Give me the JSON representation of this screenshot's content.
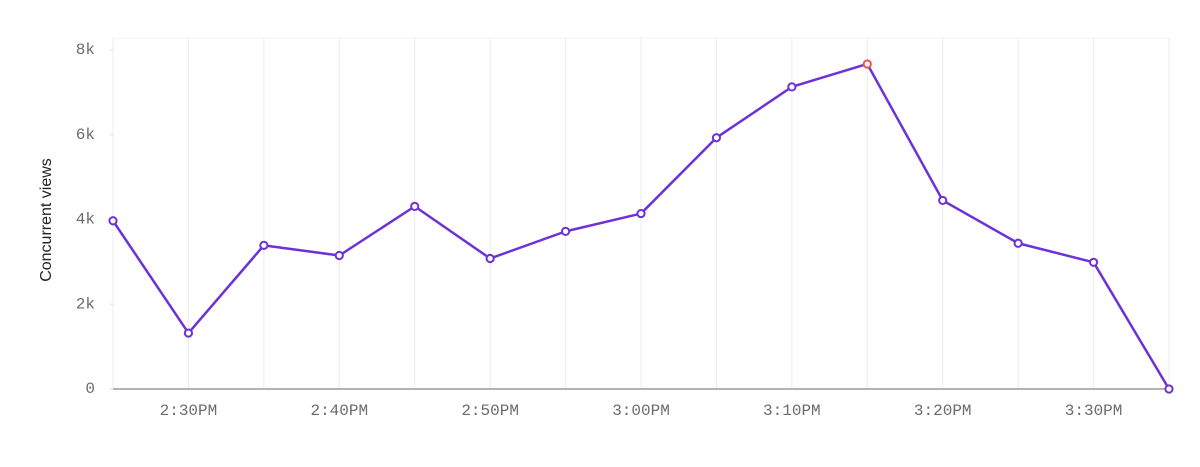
{
  "chart_data": {
    "type": "line",
    "y_label": "Concurrent views",
    "categories": [
      null,
      "2:30PM",
      null,
      "2:40PM",
      null,
      "2:50PM",
      null,
      "3:00PM",
      null,
      "3:10PM",
      null,
      "3:20PM",
      null,
      "3:30PM",
      null
    ],
    "series": [
      {
        "name": "Concurrent views",
        "color": "#6d32d6",
        "values": [
          3970,
          1320,
          3390,
          3150,
          4310,
          3080,
          3720,
          4140,
          5930,
          7130,
          7670,
          4450,
          3440,
          2990,
          0
        ]
      }
    ],
    "highlight": {
      "index": 10,
      "color": "#ef5350"
    },
    "ylim": [
      0,
      8000
    ],
    "yticks": [
      0,
      {
        "value": 2000,
        "label": "2k"
      },
      {
        "value": 4000,
        "label": "4k"
      },
      {
        "value": 6000,
        "label": "6k"
      },
      {
        "value": 8000,
        "label": "8k"
      }
    ],
    "grid": "x"
  }
}
